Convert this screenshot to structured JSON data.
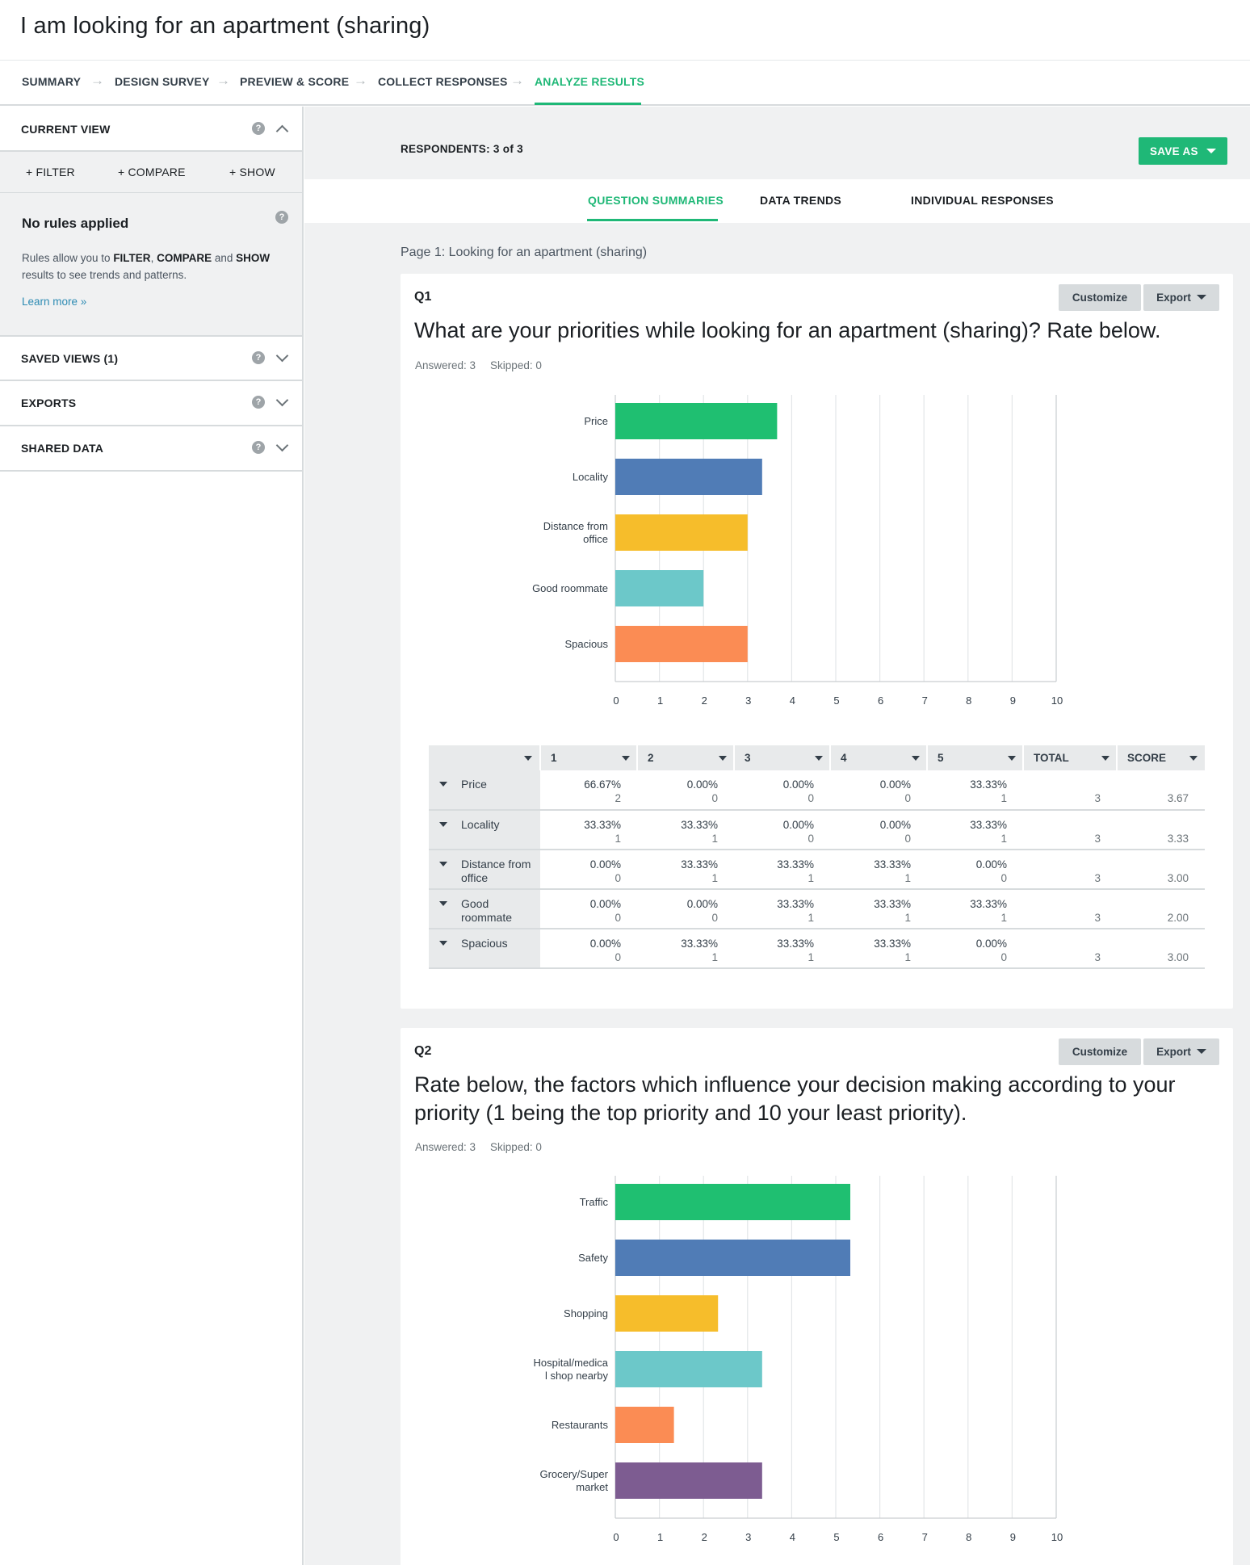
{
  "survey": {
    "title": "I am looking for an apartment (sharing)"
  },
  "steps": [
    {
      "label": "SUMMARY"
    },
    {
      "label": "DESIGN SURVEY"
    },
    {
      "label": "PREVIEW & SCORE"
    },
    {
      "label": "COLLECT RESPONSES"
    },
    {
      "label": "ANALYZE RESULTS"
    }
  ],
  "sidebar": {
    "current_view": "CURRENT VIEW",
    "actions": {
      "filter": "+ FILTER",
      "compare": "+ COMPARE",
      "show": "+ SHOW"
    },
    "rules_title": "No rules applied",
    "rules_text": {
      "prefix": "Rules allow you to ",
      "filter": "FILTER",
      "sep1": ", ",
      "compare": "COMPARE",
      "sep2": " and ",
      "show": "SHOW",
      "suffix": " results to see trends and patterns."
    },
    "learn_more": "Learn more »",
    "saved_views": "SAVED VIEWS (1)",
    "exports": "EXPORTS",
    "shared_data": "SHARED DATA"
  },
  "main": {
    "respondents": "RESPONDENTS: 3 of 3",
    "save_as": "SAVE AS",
    "tabs": [
      {
        "label": "QUESTION SUMMARIES"
      },
      {
        "label": "DATA TRENDS"
      },
      {
        "label": "INDIVIDUAL RESPONSES"
      }
    ],
    "page_label": "Page 1: Looking for an apartment (sharing)"
  },
  "q1": {
    "num": "Q1",
    "customize": "Customize",
    "export": "Export",
    "text": "What are your priorities while looking for an apartment (sharing)? Rate below.",
    "answered": "Answered: 3",
    "skipped": "Skipped: 0",
    "table": {
      "headers": [
        "1",
        "2",
        "3",
        "4",
        "5",
        "TOTAL",
        "SCORE"
      ],
      "rows": [
        {
          "label": "Price",
          "cells": [
            [
              "66.67%",
              "2"
            ],
            [
              "0.00%",
              "0"
            ],
            [
              "0.00%",
              "0"
            ],
            [
              "0.00%",
              "0"
            ],
            [
              "33.33%",
              "1"
            ]
          ],
          "total": "3",
          "score": "3.67"
        },
        {
          "label": "Locality",
          "cells": [
            [
              "33.33%",
              "1"
            ],
            [
              "33.33%",
              "1"
            ],
            [
              "0.00%",
              "0"
            ],
            [
              "0.00%",
              "0"
            ],
            [
              "33.33%",
              "1"
            ]
          ],
          "total": "3",
          "score": "3.33"
        },
        {
          "label": "Distance from office",
          "cells": [
            [
              "0.00%",
              "0"
            ],
            [
              "33.33%",
              "1"
            ],
            [
              "33.33%",
              "1"
            ],
            [
              "33.33%",
              "1"
            ],
            [
              "0.00%",
              "0"
            ]
          ],
          "total": "3",
          "score": "3.00"
        },
        {
          "label": "Good roommate",
          "cells": [
            [
              "0.00%",
              "0"
            ],
            [
              "0.00%",
              "0"
            ],
            [
              "33.33%",
              "1"
            ],
            [
              "33.33%",
              "1"
            ],
            [
              "33.33%",
              "1"
            ]
          ],
          "total": "3",
          "score": "2.00"
        },
        {
          "label": "Spacious",
          "cells": [
            [
              "0.00%",
              "0"
            ],
            [
              "33.33%",
              "1"
            ],
            [
              "33.33%",
              "1"
            ],
            [
              "33.33%",
              "1"
            ],
            [
              "0.00%",
              "0"
            ]
          ],
          "total": "3",
          "score": "3.00"
        }
      ]
    }
  },
  "q2": {
    "num": "Q2",
    "customize": "Customize",
    "export": "Export",
    "text": "Rate below, the factors which influence your decision making according to your priority (1 being the top priority and 10 your least priority).",
    "answered": "Answered: 3",
    "skipped": "Skipped: 0"
  },
  "chart_data": [
    {
      "type": "bar",
      "orientation": "horizontal",
      "categories": [
        "Price",
        "Locality",
        "Distance from office",
        "Good roommate",
        "Spacious"
      ],
      "category_lines": [
        [
          "Price"
        ],
        [
          "Locality"
        ],
        [
          "Distance from",
          "office"
        ],
        [
          "Good roommate"
        ],
        [
          "Spacious"
        ]
      ],
      "values": [
        3.67,
        3.33,
        3.0,
        2.0,
        3.0
      ],
      "colors": [
        "#1fbf71",
        "#507cb6",
        "#f6bd2b",
        "#6cc8c9",
        "#fb8c54"
      ],
      "xlim": [
        0,
        10
      ],
      "xticks": [
        "0",
        "1",
        "2",
        "3",
        "4",
        "5",
        "6",
        "7",
        "8",
        "9",
        "10"
      ],
      "grid": true
    },
    {
      "type": "bar",
      "orientation": "horizontal",
      "categories": [
        "Traffic",
        "Safety",
        "Shopping",
        "Hospital/medical shop nearby",
        "Restaurants",
        "Grocery/Supermarket"
      ],
      "category_lines": [
        [
          "Traffic"
        ],
        [
          "Safety"
        ],
        [
          "Shopping"
        ],
        [
          "Hospital/medica",
          "l shop nearby"
        ],
        [
          "Restaurants"
        ],
        [
          "Grocery/Super",
          "market"
        ]
      ],
      "values": [
        5.33,
        5.33,
        2.33,
        3.33,
        1.33,
        3.33
      ],
      "colors": [
        "#1fbf71",
        "#507cb6",
        "#f6bd2b",
        "#6cc8c9",
        "#fb8c54",
        "#7d5c91"
      ],
      "xlim": [
        0,
        10
      ],
      "xticks": [
        "0",
        "1",
        "2",
        "3",
        "4",
        "5",
        "6",
        "7",
        "8",
        "9",
        "10"
      ],
      "grid": true
    }
  ]
}
